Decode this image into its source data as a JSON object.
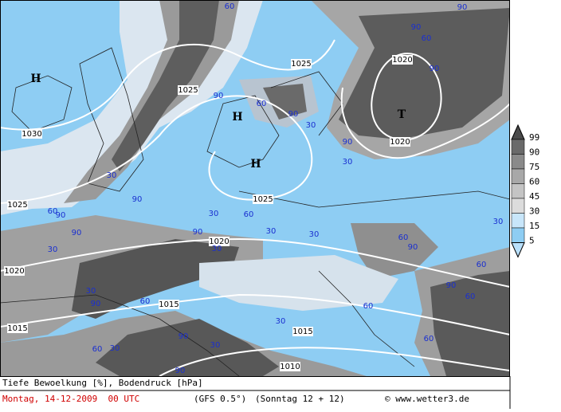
{
  "map": {
    "isobar_labels": [
      1025,
      1025,
      1030,
      1020,
      1020,
      1025,
      1025,
      1020,
      1020,
      1015,
      1015,
      1015,
      1010
    ],
    "pressure_systems": [
      "H",
      "H",
      "H",
      "T"
    ],
    "cloud_labels": [
      90,
      60,
      90,
      60,
      90,
      90,
      60,
      90,
      30,
      90,
      30,
      30,
      90,
      60,
      90,
      30,
      60,
      30,
      90,
      90,
      30,
      60,
      90,
      30,
      30,
      30,
      60,
      90,
      30,
      90,
      60,
      60,
      60,
      30,
      90,
      60,
      30,
      30,
      60,
      90
    ]
  },
  "legend": {
    "levels": [
      99,
      90,
      75,
      60,
      45,
      30,
      15,
      5
    ]
  },
  "footer": {
    "title": "Tiefe Bewoelkung [%], Bodendruck [hPa]",
    "date": "Montag, 14-12-2009  00 UTC",
    "model": "(GFS 0.5°)",
    "run": "(Sonntag 12 + 12)",
    "credit": "© www.wetter3.de"
  }
}
